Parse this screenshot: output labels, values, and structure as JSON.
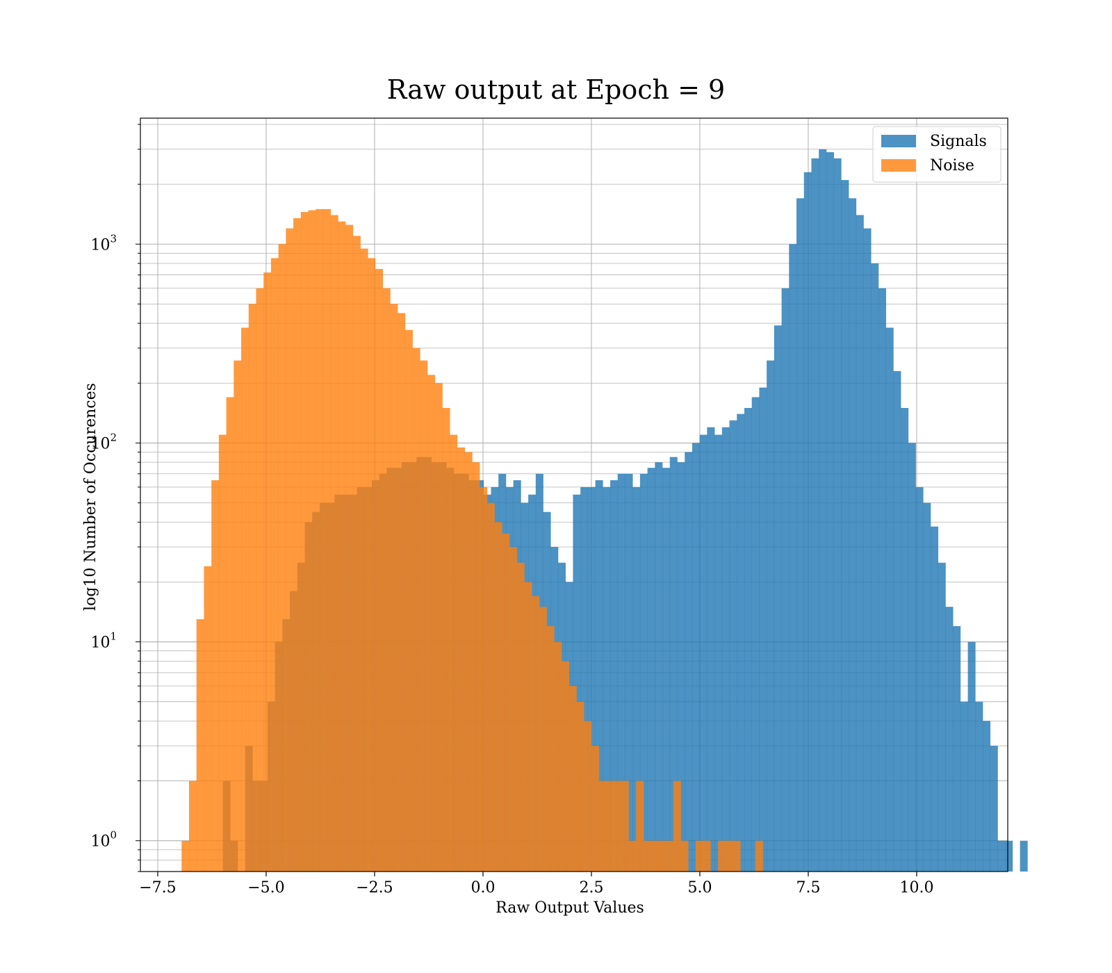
{
  "chart_data": {
    "type": "bar",
    "title": "Raw output at Epoch = 9",
    "xlabel": "Raw Output Values",
    "ylabel": "log10 Number of Occurences",
    "xlim": [
      -7.9,
      12.1
    ],
    "ylim": [
      0.7,
      4300
    ],
    "yscale": "log",
    "grid": true,
    "legend_position": "top-right",
    "x_ticks": [
      {
        "value": -7.5,
        "label": "−7.5"
      },
      {
        "value": -5.0,
        "label": "−5.0"
      },
      {
        "value": -2.5,
        "label": "−2.5"
      },
      {
        "value": 0.0,
        "label": "0.0"
      },
      {
        "value": 2.5,
        "label": "2.5"
      },
      {
        "value": 5.0,
        "label": "5.0"
      },
      {
        "value": 7.5,
        "label": "7.5"
      },
      {
        "value": 10.0,
        "label": "10.0"
      }
    ],
    "y_ticks": [
      {
        "value": 1,
        "base": "10",
        "exp": "0"
      },
      {
        "value": 10,
        "base": "10",
        "exp": "1"
      },
      {
        "value": 100,
        "base": "10",
        "exp": "2"
      },
      {
        "value": 1000,
        "base": "10",
        "exp": "3"
      }
    ],
    "series": [
      {
        "name": "Signals",
        "color": "#1f77b4",
        "opacity": 0.8,
        "bin_start": -6.0,
        "bin_width": 0.1718,
        "values": [
          2,
          1,
          0,
          3,
          2,
          2,
          5,
          10,
          13,
          18,
          25,
          40,
          45,
          50,
          50,
          55,
          55,
          55,
          60,
          60,
          65,
          70,
          75,
          75,
          80,
          80,
          85,
          85,
          80,
          80,
          75,
          70,
          70,
          65,
          65,
          55,
          60,
          70,
          60,
          65,
          50,
          55,
          70,
          45,
          30,
          25,
          20,
          55,
          60,
          60,
          65,
          60,
          65,
          70,
          70,
          60,
          70,
          75,
          80,
          75,
          85,
          80,
          90,
          100,
          110,
          120,
          110,
          120,
          130,
          140,
          150,
          170,
          190,
          260,
          390,
          600,
          1000,
          1700,
          2300,
          2700,
          3000,
          2900,
          2700,
          2100,
          1700,
          1400,
          1200,
          800,
          600,
          380,
          230,
          150,
          100,
          60,
          50,
          38,
          25,
          15,
          12,
          5,
          10,
          5,
          4,
          3,
          1,
          1,
          0,
          1
        ]
      },
      {
        "name": "Noise",
        "color": "#ff7f0e",
        "opacity": 0.8,
        "bin_start": -6.95,
        "bin_width": 0.1718,
        "values": [
          1,
          2,
          13,
          24,
          65,
          110,
          170,
          260,
          380,
          500,
          600,
          720,
          850,
          1000,
          1200,
          1350,
          1450,
          1480,
          1500,
          1500,
          1400,
          1300,
          1250,
          1100,
          950,
          850,
          750,
          600,
          500,
          450,
          370,
          300,
          260,
          220,
          200,
          150,
          110,
          95,
          90,
          80,
          60,
          50,
          40,
          35,
          30,
          25,
          20,
          17,
          15,
          12,
          10,
          8,
          6,
          5,
          4,
          3,
          2,
          2,
          2,
          2,
          1,
          2,
          1,
          1,
          1,
          1,
          2,
          1,
          0,
          1,
          1,
          0,
          1,
          1,
          1,
          0,
          0,
          1
        ]
      }
    ]
  }
}
